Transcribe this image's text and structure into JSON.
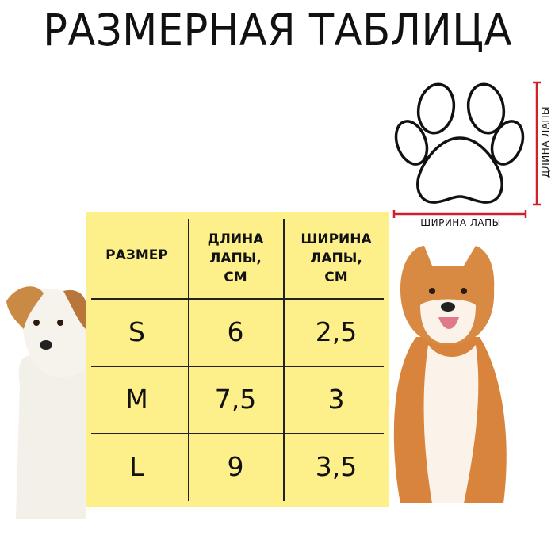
{
  "title": "РАЗМЕРНАЯ ТАБЛИЦА",
  "diagram": {
    "length_label": "ДЛИНА ЛАПЫ",
    "width_label": "ШИРИНА ЛАПЫ",
    "accent_color": "#d0202a"
  },
  "table": {
    "background": "#fdf08a",
    "headers": [
      "РАЗМЕР",
      "ДЛИНА ЛАПЫ, СМ",
      "ШИРИНА ЛАПЫ, СМ"
    ],
    "rows": [
      [
        "S",
        "6",
        "2,5"
      ],
      [
        "M",
        "7,5",
        "3"
      ],
      [
        "L",
        "9",
        "3,5"
      ]
    ]
  }
}
